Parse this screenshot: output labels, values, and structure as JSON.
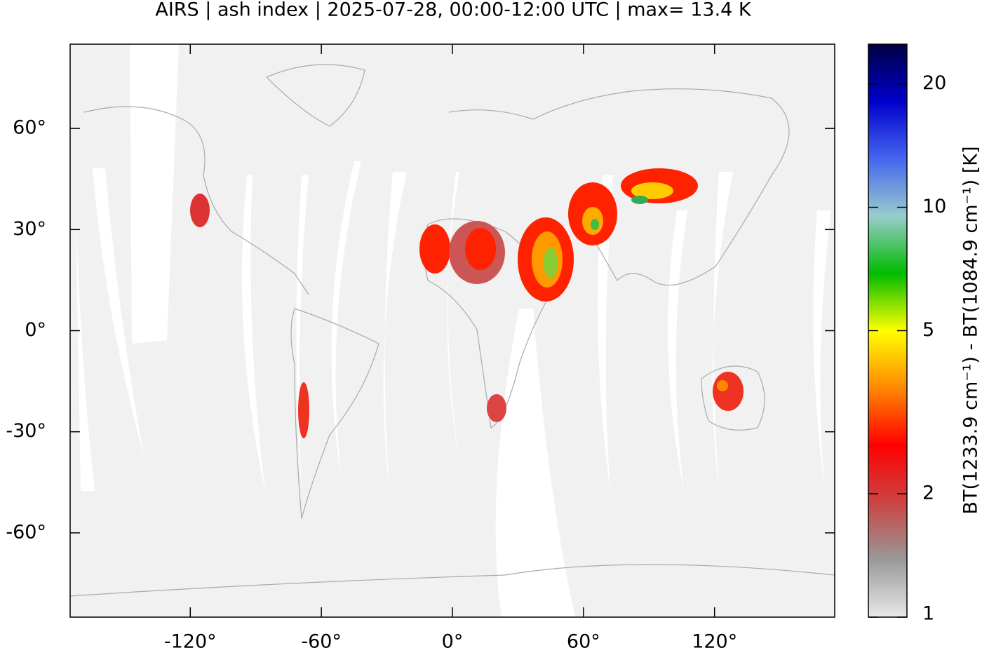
{
  "chart_data": {
    "type": "map",
    "title": "AIRS | ash index | 2025-07-28, 00:00-12:00 UTC | max= 13.4 K",
    "xlim": [
      -175,
      175
    ],
    "xticks": [
      {
        "value": -120,
        "label": "-120°"
      },
      {
        "value": -60,
        "label": "-60°"
      },
      {
        "value": 0,
        "label": "0°"
      },
      {
        "value": 60,
        "label": "60°"
      },
      {
        "value": 120,
        "label": "120°"
      }
    ],
    "ylim": [
      -85,
      85
    ],
    "yticks": [
      {
        "value": 60,
        "label": "60°"
      },
      {
        "value": 30,
        "label": "30°"
      },
      {
        "value": 0,
        "label": "0°"
      },
      {
        "value": -30,
        "label": "-30°"
      },
      {
        "value": -60,
        "label": "-60°"
      }
    ],
    "colorbar": {
      "label": "BT(1233.9 cm⁻¹) - BT(1084.9 cm⁻¹) [K]",
      "clim": [
        1,
        25
      ],
      "log": true,
      "ticks": [
        1,
        2,
        5,
        10,
        20
      ],
      "colormap": [
        "#e8e8e8",
        "#999999",
        "#cc4444",
        "#ff0000",
        "#ff8800",
        "#ffff00",
        "#00bb00",
        "#99cccc",
        "#4466ee",
        "#0000cc",
        "#000044"
      ]
    }
  }
}
